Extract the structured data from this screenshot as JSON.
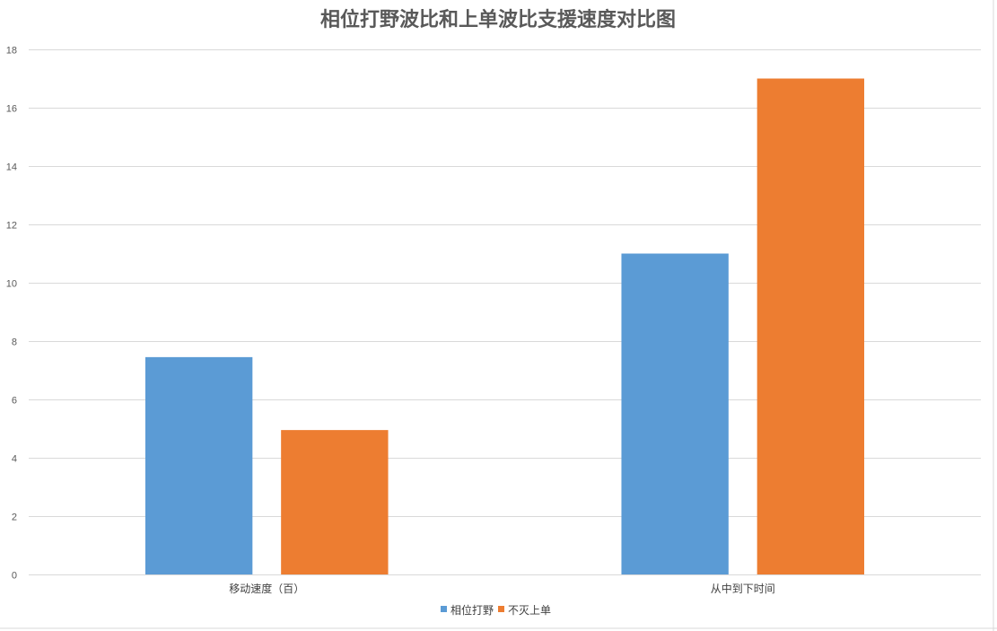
{
  "chart_data": {
    "type": "bar",
    "title": "相位打野波比和上单波比支援速度对比图",
    "xlabel": "",
    "ylabel": "",
    "categories": [
      "移动速度（百）",
      "从中到下时间"
    ],
    "series": [
      {
        "name": "相位打野",
        "values": [
          7.45,
          11
        ],
        "color": "#5b9bd5"
      },
      {
        "name": "不灭上单",
        "values": [
          4.95,
          17
        ],
        "color": "#ed7d31"
      }
    ],
    "ylim": [
      0,
      18
    ],
    "yticks": [
      0,
      2,
      4,
      6,
      8,
      10,
      12,
      14,
      16,
      18
    ],
    "grid": true,
    "legend_position": "bottom"
  }
}
